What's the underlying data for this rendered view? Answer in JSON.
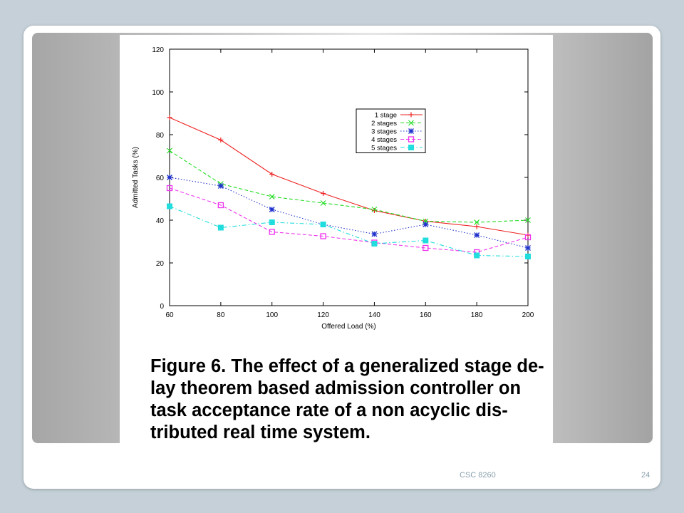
{
  "footer": {
    "course": "CSC 8260",
    "page_number": "24"
  },
  "caption": {
    "lines": [
      "Figure 6. The effect of a generalized stage de-",
      "lay theorem based admission controller on",
      "task acceptance rate of a non acyclic dis-",
      "tributed real time system."
    ]
  },
  "chart_data": {
    "type": "line",
    "title": "",
    "xlabel": "Offered Load (%)",
    "ylabel": "Admitted Tasks (%)",
    "xlim": [
      60,
      200
    ],
    "ylim": [
      0,
      120
    ],
    "x_ticks": [
      60,
      80,
      100,
      120,
      140,
      160,
      180,
      200
    ],
    "y_ticks": [
      0,
      20,
      40,
      60,
      80,
      100,
      120
    ],
    "grid": false,
    "legend_position": "top-right",
    "x": [
      60,
      80,
      100,
      120,
      140,
      160,
      180,
      200
    ],
    "series": [
      {
        "name": "1 stage",
        "color": "#ee2222",
        "marker": "plus",
        "dash": "solid",
        "values": [
          88,
          77.5,
          61.5,
          52.5,
          44.5,
          39.5,
          37,
          33
        ]
      },
      {
        "name": "2 stages",
        "color": "#22dd22",
        "marker": "cross",
        "dash": "dashed",
        "values": [
          72.5,
          57,
          51,
          48,
          45,
          39.5,
          39,
          40
        ]
      },
      {
        "name": "3 stages",
        "color": "#2233cc",
        "marker": "star",
        "dash": "dotted",
        "values": [
          60,
          56,
          45,
          38,
          33.5,
          38,
          33,
          27
        ]
      },
      {
        "name": "4 stages",
        "color": "#ee33ee",
        "marker": "square",
        "dash": "dashed",
        "values": [
          55,
          47,
          34.5,
          32.5,
          29.5,
          27,
          25,
          32
        ]
      },
      {
        "name": "5 stages",
        "color": "#22dddd",
        "marker": "filled-square",
        "dash": "dashdot",
        "values": [
          46.5,
          36.5,
          39,
          38,
          29,
          30.5,
          23.5,
          23
        ]
      }
    ]
  }
}
